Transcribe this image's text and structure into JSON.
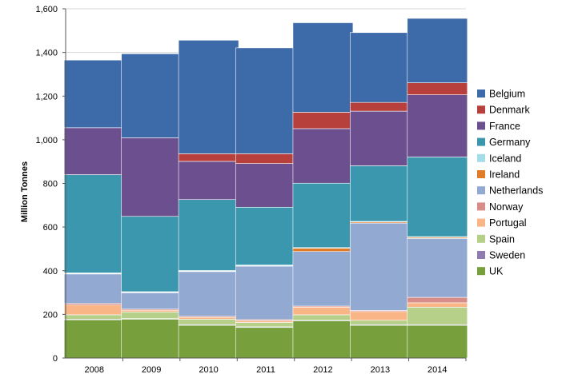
{
  "chart_data": {
    "type": "bar",
    "stacked": true,
    "title": "",
    "xlabel": "",
    "ylabel": "Million Tonnes",
    "ylim": [
      0,
      1600
    ],
    "yticks": [
      0,
      200,
      400,
      600,
      800,
      1000,
      1200,
      1400,
      1600
    ],
    "ytick_labels": [
      "0",
      "200",
      "400",
      "600",
      "800",
      "1,000",
      "1,200",
      "1,400",
      "1,600"
    ],
    "grid": true,
    "legend_position": "right",
    "categories": [
      "2008",
      "2009",
      "2010",
      "2011",
      "2012",
      "2013",
      "2014"
    ],
    "series": [
      {
        "name": "UK",
        "color": "#77a03c",
        "values": [
          175,
          178,
          150,
          140,
          170,
          150,
          150
        ]
      },
      {
        "name": "Sweden",
        "color": "#8e7bb0",
        "values": [
          3,
          3,
          3,
          3,
          3,
          3,
          3
        ]
      },
      {
        "name": "Spain",
        "color": "#b6d08a",
        "values": [
          20,
          30,
          25,
          20,
          25,
          20,
          80
        ]
      },
      {
        "name": "Portugal",
        "color": "#f9b585",
        "values": [
          45,
          8,
          8,
          8,
          35,
          40,
          20
        ]
      },
      {
        "name": "Norway",
        "color": "#d88d89",
        "values": [
          7,
          5,
          5,
          5,
          5,
          5,
          25
        ]
      },
      {
        "name": "Netherlands",
        "color": "#92a9d2",
        "values": [
          135,
          75,
          205,
          245,
          250,
          400,
          270
        ]
      },
      {
        "name": "Ireland",
        "color": "#e07b27",
        "values": [
          2,
          2,
          2,
          2,
          15,
          5,
          5
        ]
      },
      {
        "name": "Iceland",
        "color": "#a5dce9",
        "values": [
          3,
          3,
          3,
          3,
          3,
          3,
          3
        ]
      },
      {
        "name": "Germany",
        "color": "#3b97ad",
        "values": [
          450,
          345,
          325,
          265,
          295,
          255,
          365
        ]
      },
      {
        "name": "France",
        "color": "#6b4f8e",
        "values": [
          215,
          360,
          175,
          200,
          250,
          250,
          285
        ]
      },
      {
        "name": "Denmark",
        "color": "#b7403c",
        "values": [
          0,
          0,
          35,
          45,
          75,
          40,
          55
        ]
      },
      {
        "name": "Belgium",
        "color": "#3d6aa8",
        "values": [
          310,
          385,
          520,
          485,
          410,
          320,
          295
        ]
      }
    ],
    "legend_order": [
      "Belgium",
      "Denmark",
      "France",
      "Germany",
      "Iceland",
      "Ireland",
      "Netherlands",
      "Norway",
      "Portugal",
      "Spain",
      "Sweden",
      "UK"
    ]
  }
}
